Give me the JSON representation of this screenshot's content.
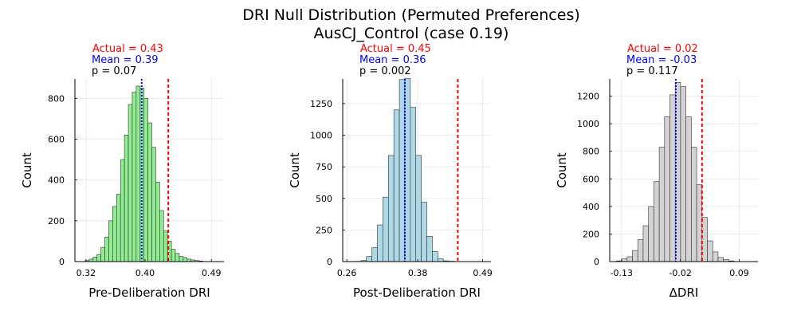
{
  "figure": {
    "title_line1": "DRI Null Distribution (Permuted Preferences)",
    "title_line2": "AusCJ_Control (case 0.19)"
  },
  "chart_data": [
    {
      "type": "histogram",
      "xlabel": "Pre-Deliberation DRI",
      "ylabel": "Count",
      "xlim": [
        0.305,
        0.507
      ],
      "ylim": [
        0,
        895
      ],
      "xticks": [
        0.32,
        0.4,
        0.49
      ],
      "xtick_labels": [
        "0.32",
        "0.40",
        "0.49"
      ],
      "yticks": [
        0,
        200,
        400,
        600,
        800
      ],
      "yticks_labels": [
        "0",
        "200",
        "400",
        "600",
        "800"
      ],
      "bin_start": 0.319,
      "bin_width": 0.00531,
      "counts": [
        5,
        12,
        22,
        35,
        70,
        120,
        200,
        270,
        330,
        500,
        620,
        770,
        830,
        860,
        850,
        800,
        680,
        560,
        390,
        250,
        150,
        100,
        60,
        40,
        25,
        20,
        12,
        8,
        5,
        3
      ],
      "bar_color": "#90ee90",
      "annotations": {
        "actual": "Actual = 0.43",
        "mean": "Mean = 0.39",
        "p": "p = 0.07"
      },
      "actual_value": 0.4316,
      "mean_value": 0.3955,
      "grid": true
    },
    {
      "type": "histogram",
      "xlabel": "Post-Deliberation DRI",
      "ylabel": "Count",
      "xlim": [
        0.253,
        0.504
      ],
      "ylim": [
        0,
        1445
      ],
      "xticks": [
        0.26,
        0.38,
        0.49
      ],
      "xtick_labels": [
        "0.26",
        "0.38",
        "0.49"
      ],
      "yticks": [
        0,
        250,
        500,
        750,
        1000,
        1250
      ],
      "yticks_labels": [
        "0",
        "250",
        "500",
        "750",
        "1000",
        "1250"
      ],
      "bin_start": 0.2745,
      "bin_width": 0.0093,
      "counts": [
        2,
        8,
        40,
        110,
        290,
        510,
        840,
        1200,
        1440,
        1450,
        1220,
        840,
        470,
        200,
        80,
        22,
        6,
        3,
        1
      ],
      "bar_color": "#add8e6",
      "annotations": {
        "actual": "Actual = 0.45",
        "mean": "Mean = 0.36",
        "p": "p = 0.002"
      },
      "actual_value": 0.4479,
      "mean_value": 0.3582,
      "grid": true
    },
    {
      "type": "histogram",
      "xlabel": "ΔDRI",
      "ylabel": "Count",
      "xlim": [
        -0.152,
        0.125
      ],
      "ylim": [
        0,
        1325
      ],
      "xticks": [
        -0.13,
        -0.02,
        0.09
      ],
      "xtick_labels": [
        "-0.13",
        "-0.02",
        "0.09"
      ],
      "yticks": [
        0,
        200,
        400,
        600,
        800,
        1000,
        1200
      ],
      "yticks_labels": [
        "0",
        "200",
        "400",
        "600",
        "800",
        "1000",
        "1200"
      ],
      "bin_start": -0.1395,
      "bin_width": 0.01,
      "counts": [
        5,
        20,
        35,
        80,
        160,
        260,
        400,
        580,
        830,
        1050,
        1210,
        1300,
        1270,
        1050,
        830,
        560,
        320,
        150,
        70,
        30,
        15,
        5
      ],
      "bar_color": "#d3d3d3",
      "annotations": {
        "actual": "Actual = 0.02",
        "mean": "Mean = -0.03",
        "p": "p = 0.117"
      },
      "actual_value": 0.0205,
      "mean_value": -0.0285,
      "grid": true
    }
  ]
}
